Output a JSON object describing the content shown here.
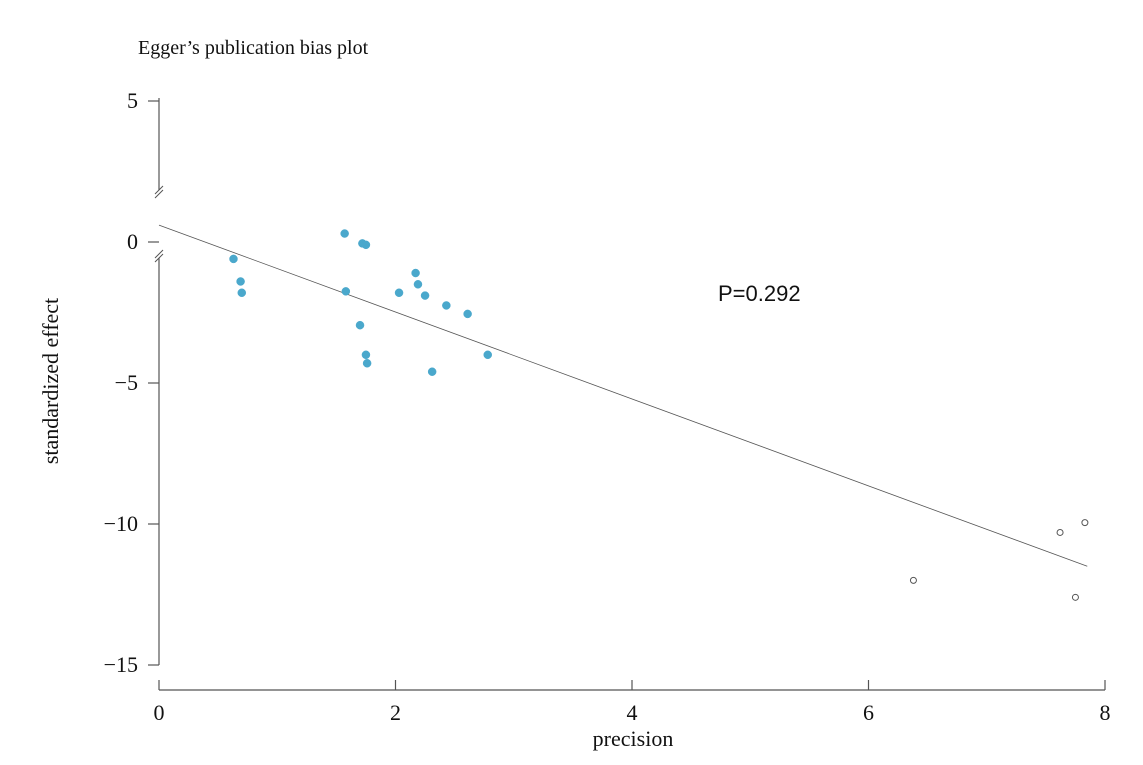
{
  "chart_data": {
    "type": "scatter",
    "title": "Egger’s publication bias plot",
    "xlabel": "precision",
    "ylabel": "standardized effect",
    "xlim": [
      0,
      8
    ],
    "ylim": [
      -15,
      5
    ],
    "xticks": [
      0,
      2,
      4,
      6,
      8
    ],
    "yticks": [
      5,
      0,
      -5,
      -10,
      -15
    ],
    "xtick_labels": [
      "0",
      "2",
      "4",
      "6",
      "8"
    ],
    "ytick_labels": [
      "5",
      "0",
      "−5",
      "−10",
      "−15"
    ],
    "y_axis_break": true,
    "grid": false,
    "annotation": "P=0.292",
    "colors": {
      "observed": "#4aa8cc",
      "imputed": "#555555",
      "line": "#555555",
      "axis": "#555555"
    },
    "series": [
      {
        "marker": "filled",
        "points": [
          {
            "x": 0.63,
            "y": -0.6
          },
          {
            "x": 0.69,
            "y": -1.4
          },
          {
            "x": 0.7,
            "y": -1.8
          },
          {
            "x": 1.57,
            "y": 0.3
          },
          {
            "x": 1.58,
            "y": -1.75
          },
          {
            "x": 1.7,
            "y": -2.95
          },
          {
            "x": 1.72,
            "y": -0.05
          },
          {
            "x": 1.75,
            "y": -0.1
          },
          {
            "x": 1.75,
            "y": -4.0
          },
          {
            "x": 1.76,
            "y": -4.3
          },
          {
            "x": 2.03,
            "y": -1.8
          },
          {
            "x": 2.17,
            "y": -1.1
          },
          {
            "x": 2.19,
            "y": -1.5
          },
          {
            "x": 2.25,
            "y": -1.9
          },
          {
            "x": 2.31,
            "y": -4.6
          },
          {
            "x": 2.43,
            "y": -2.25
          },
          {
            "x": 2.61,
            "y": -2.55
          },
          {
            "x": 2.78,
            "y": -4.0
          }
        ]
      },
      {
        "marker": "open",
        "points": [
          {
            "x": 6.38,
            "y": -12.0
          },
          {
            "x": 7.62,
            "y": -10.3
          },
          {
            "x": 7.75,
            "y": -12.6
          },
          {
            "x": 7.83,
            "y": -9.95
          }
        ]
      }
    ],
    "regression_line": {
      "x": [
        0,
        7.85
      ],
      "y": [
        0.6,
        -11.5
      ]
    }
  }
}
